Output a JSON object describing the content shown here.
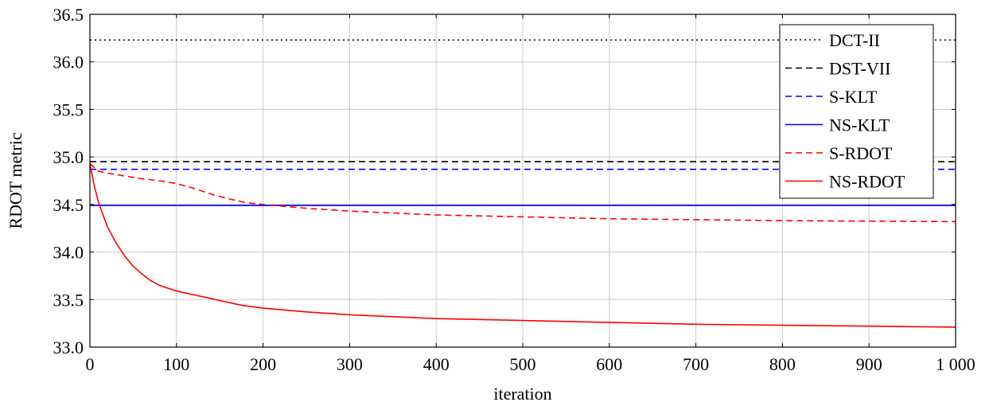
{
  "chart_data": {
    "type": "line",
    "title": "",
    "xlabel": "iteration",
    "ylabel": "RDOT metric",
    "xlim": [
      0,
      1000
    ],
    "ylim": [
      33.0,
      36.5
    ],
    "xticks": [
      0,
      100,
      200,
      300,
      400,
      500,
      600,
      700,
      800,
      900,
      1000
    ],
    "yticks": [
      33.0,
      33.5,
      34.0,
      34.5,
      35.0,
      35.5,
      36.0,
      36.5
    ],
    "xtick_labels": [
      "0",
      "100",
      "200",
      "300",
      "400",
      "500",
      "600",
      "700",
      "800",
      "900",
      "1 000"
    ],
    "ytick_labels": [
      "33.0",
      "33.5",
      "34.0",
      "34.5",
      "35.0",
      "35.5",
      "36.0",
      "36.5"
    ],
    "grid": true,
    "legend_position": "top-right",
    "series": [
      {
        "name": "DCT-II",
        "color": "#000000",
        "style": "dotted",
        "x": [
          0,
          1000
        ],
        "y": [
          36.23,
          36.23
        ]
      },
      {
        "name": "DST-VII",
        "color": "#000000",
        "style": "dashed",
        "x": [
          0,
          1000
        ],
        "y": [
          34.95,
          34.95
        ]
      },
      {
        "name": "S-KLT",
        "color": "#0000ff",
        "style": "dashed",
        "x": [
          0,
          1000
        ],
        "y": [
          34.87,
          34.87
        ]
      },
      {
        "name": "NS-KLT",
        "color": "#0000ff",
        "style": "solid",
        "x": [
          0,
          1000
        ],
        "y": [
          34.49,
          34.49
        ]
      },
      {
        "name": "S-RDOT",
        "color": "#ff0000",
        "style": "dashed",
        "x": [
          0,
          10,
          20,
          40,
          60,
          80,
          100,
          120,
          140,
          160,
          180,
          200,
          250,
          300,
          400,
          500,
          600,
          700,
          800,
          900,
          1000
        ],
        "y": [
          34.93,
          34.85,
          34.83,
          34.8,
          34.77,
          34.75,
          34.72,
          34.67,
          34.61,
          34.56,
          34.52,
          34.5,
          34.46,
          34.43,
          34.39,
          34.37,
          34.35,
          34.34,
          34.33,
          34.325,
          34.32
        ]
      },
      {
        "name": "NS-RDOT",
        "color": "#ff0000",
        "style": "solid",
        "x": [
          0,
          5,
          10,
          20,
          30,
          40,
          50,
          60,
          70,
          80,
          100,
          125,
          150,
          175,
          200,
          250,
          300,
          400,
          500,
          600,
          700,
          800,
          900,
          1000
        ],
        "y": [
          34.93,
          34.7,
          34.52,
          34.27,
          34.1,
          33.96,
          33.85,
          33.77,
          33.7,
          33.65,
          33.59,
          33.54,
          33.49,
          33.44,
          33.41,
          33.37,
          33.34,
          33.3,
          33.28,
          33.26,
          33.24,
          33.23,
          33.22,
          33.21
        ]
      }
    ]
  }
}
